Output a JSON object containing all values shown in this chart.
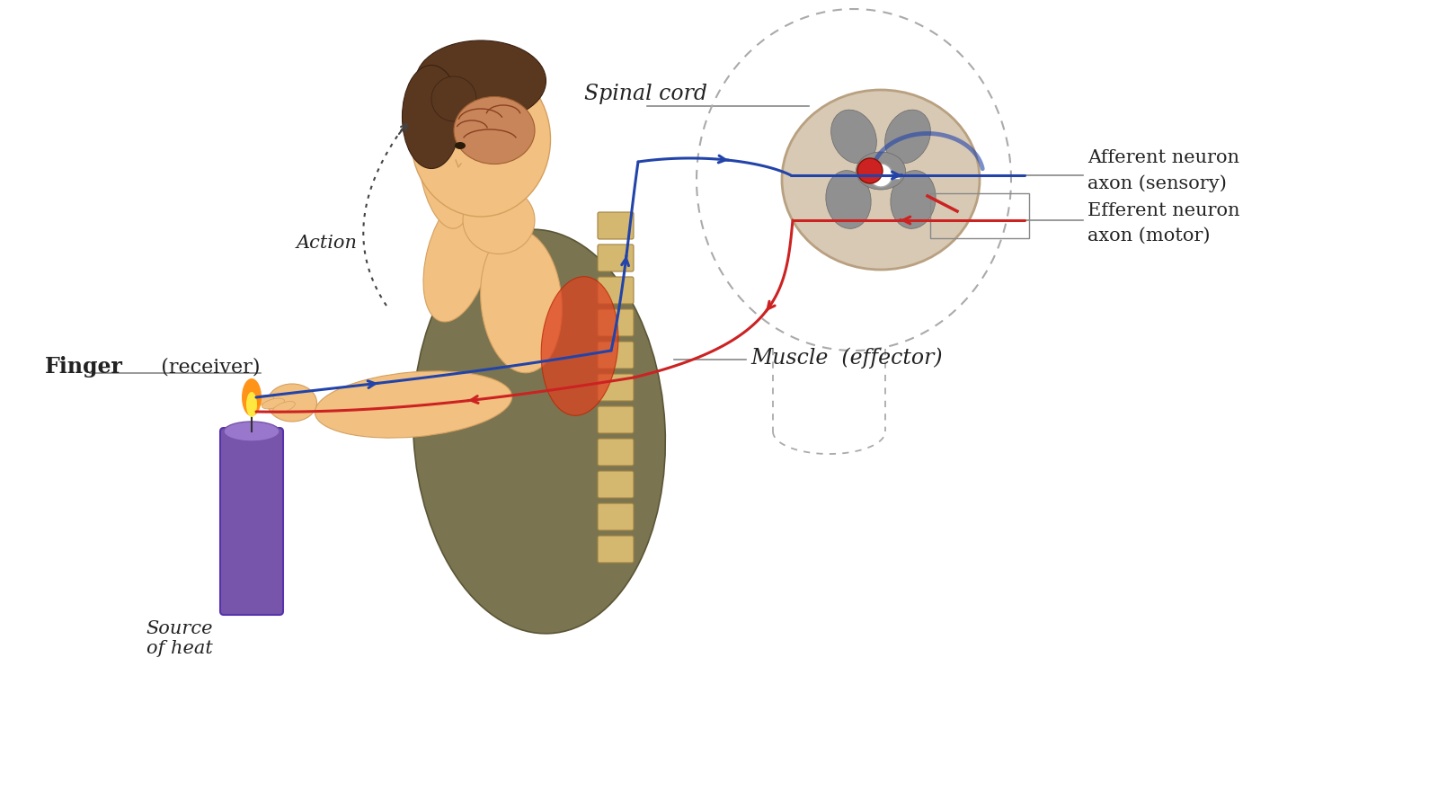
{
  "bg_color": "#ffffff",
  "afferent_color": "#2244aa",
  "efferent_color": "#cc2222",
  "spinal_cord_label": "Spinal cord",
  "afferent_label": "Afferent neuron\naxon (sensory)",
  "efferent_label": "Efferent neuron\naxon (motor)",
  "action_label": "Action",
  "finger_label_bold": "Finger",
  "finger_label_rest": "  (receiver)",
  "muscle_label": "Muscle  (effector)",
  "heat_label": "Source\nof heat",
  "label_fontsize": 15,
  "text_color": "#222222",
  "line_width": 2.2,
  "candle_color": "#7755aa",
  "flesh_color": "#f2c080",
  "hair_color": "#5a3820",
  "torso_color": "#7a7550",
  "spine_color": "#c8a860",
  "muscle_color": "#d04020",
  "spinal_bg": "#cfc0a8",
  "gray_matter": "#888080",
  "dot_color": "#cc2222",
  "dashed_color": "#aaaaaa",
  "label_line_color": "#888888"
}
